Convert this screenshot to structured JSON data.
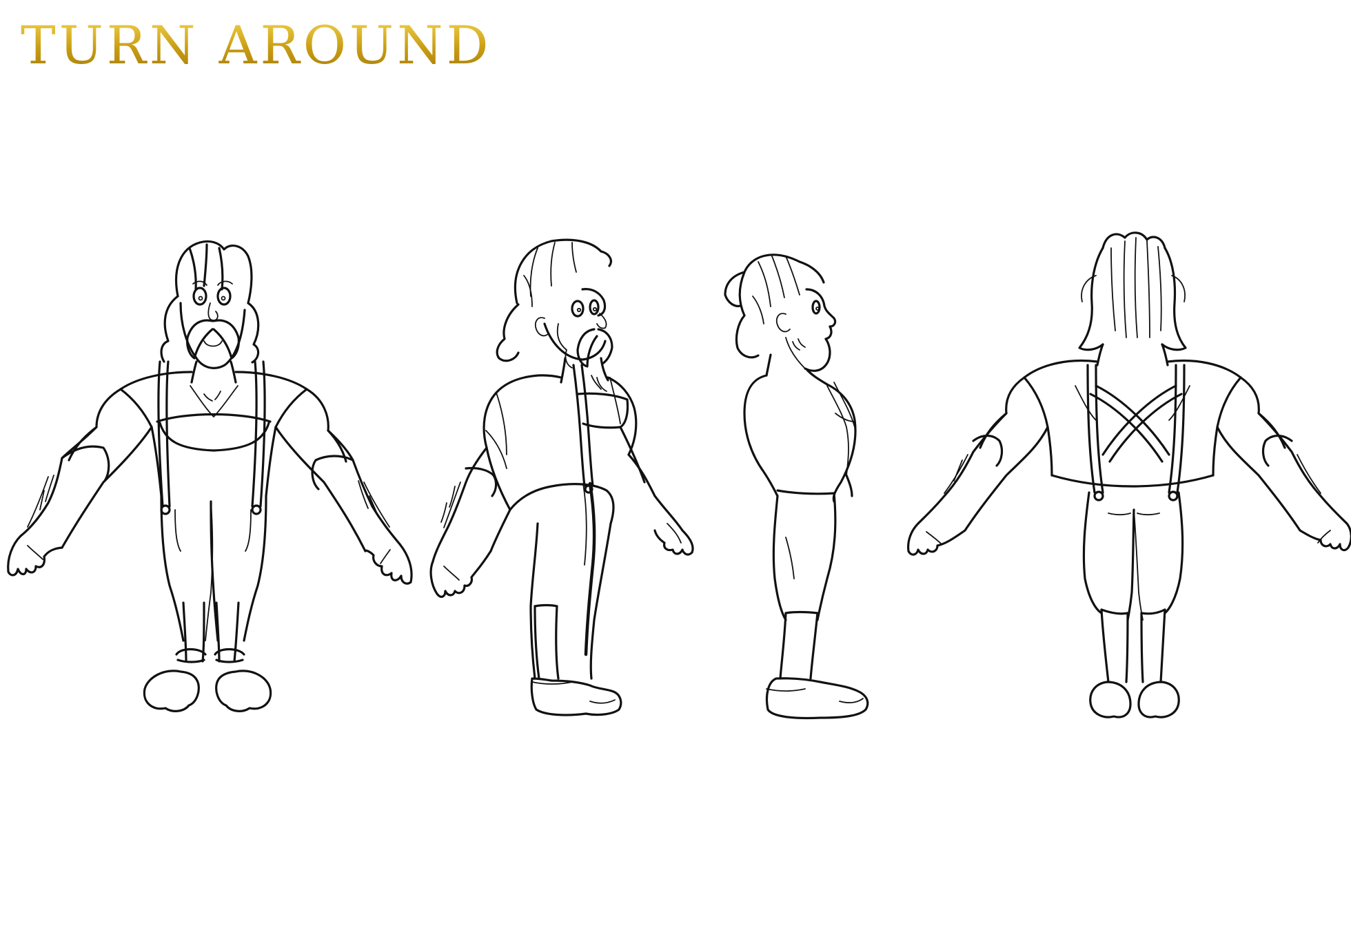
{
  "sheet": {
    "title": "TURN AROUND",
    "title_color": "#c9a21f"
  },
  "views": [
    {
      "name": "front-view"
    },
    {
      "name": "three-quarter-view"
    },
    {
      "name": "side-view"
    },
    {
      "name": "back-view"
    }
  ]
}
